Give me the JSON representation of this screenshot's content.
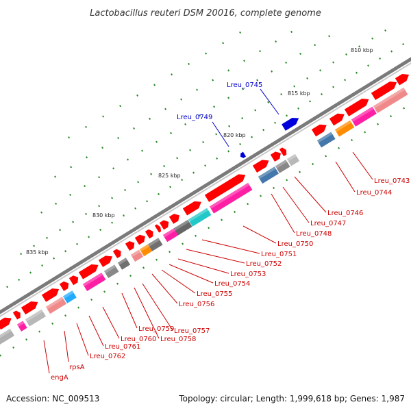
{
  "title": "Lactobacillus reuteri DSM 20016, complete genome",
  "footer": {
    "accession": "Accession: NC_009513",
    "summary": "Topology: circular; Length: 1,999,618 bp; Genes: 1,987"
  },
  "ticks": [
    "810 kbp",
    "815 kbp",
    "820 kbp",
    "825 kbp",
    "830 kbp",
    "835 kbp"
  ],
  "colors": {
    "backbone": "#7a7a7a",
    "forward_gene": "#ff0000",
    "reverse_gene": "#0000dd",
    "label_red": "#cc0000",
    "label_blue": "#0000cc",
    "tick": "#2a8a2a"
  },
  "gene_labels": [
    "Lreu_0745",
    "Lreu_0749",
    "Lreu_0743",
    "Lreu_0744",
    "Lreu_0746",
    "Lreu_0747",
    "Lreu_0748",
    "Lreu_0750",
    "Lreu_0751",
    "Lreu_0752",
    "Lreu_0753",
    "Lreu_0754",
    "Lreu_0755",
    "Lreu_0756",
    "Lreu_0757",
    "Lreu_0758",
    "Lreu_0759",
    "Lreu_0760",
    "Lreu_0761",
    "Lreu_0762",
    "rpsA",
    "engA"
  ]
}
